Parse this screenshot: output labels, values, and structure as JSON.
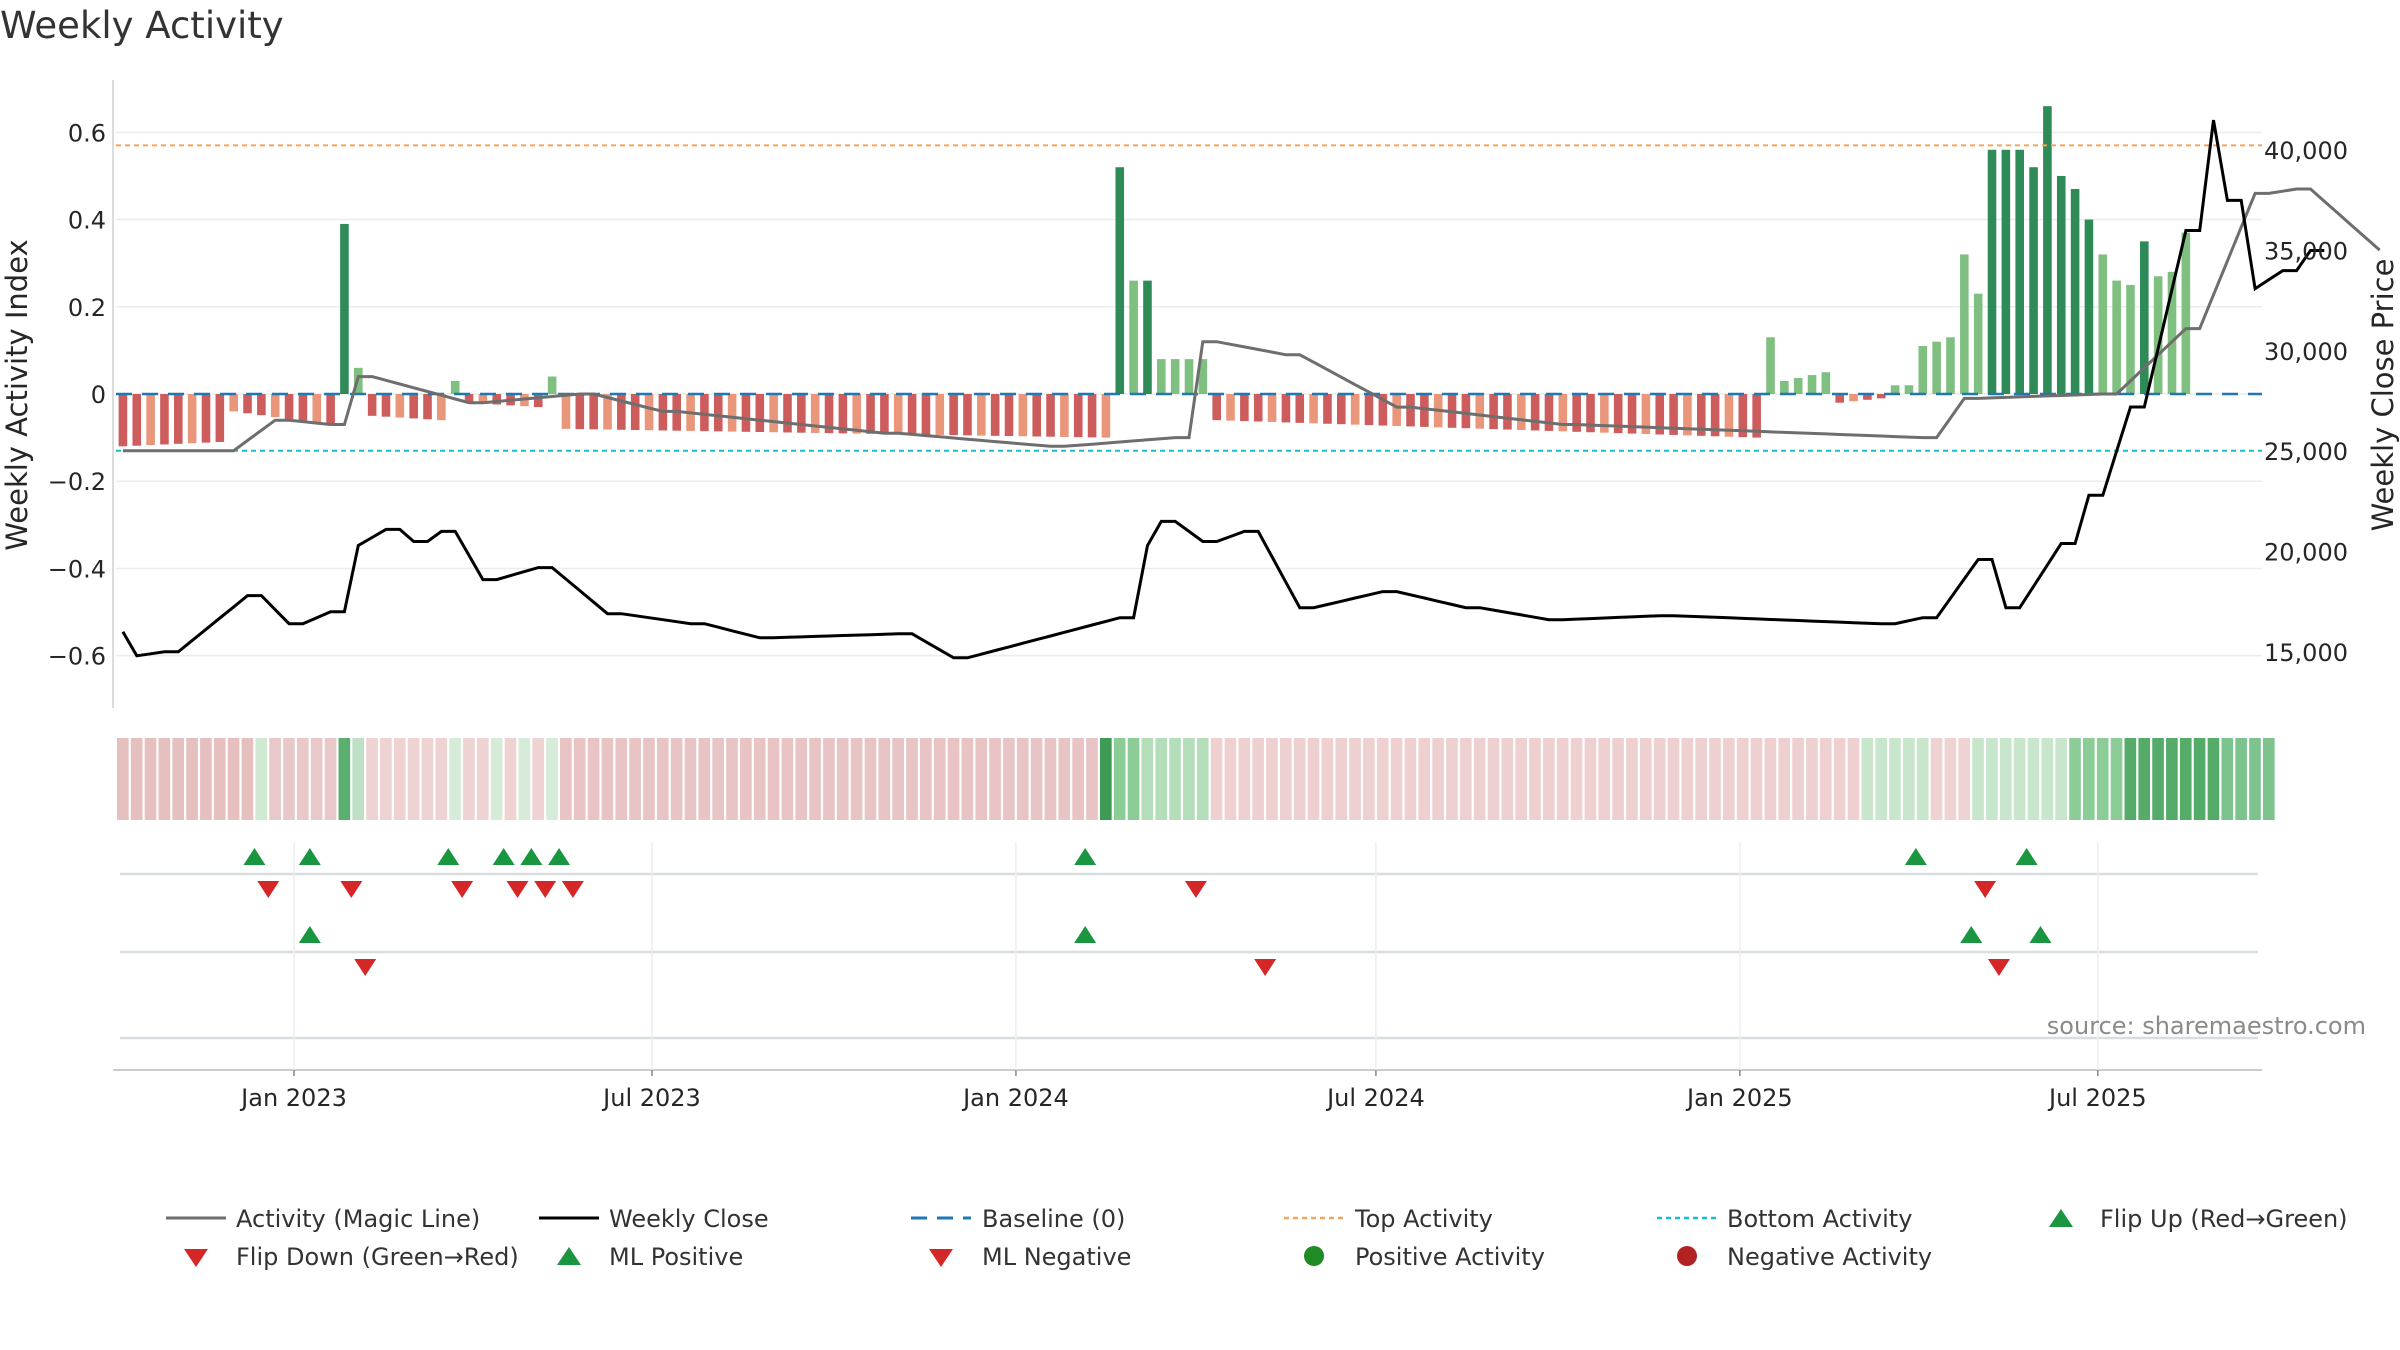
{
  "title": "Weekly Activity",
  "source": "source: sharemaestro.com",
  "colors": {
    "pos_strong": "#2e8b57",
    "pos_light": "#7fbf7f",
    "neg_strong": "#cd5c5c",
    "neg_light": "#e9967a",
    "magic_line": "#6e6e6e",
    "close_line": "#000000",
    "baseline": "#1f77b4",
    "top": "#f4a460",
    "bottom": "#17becf",
    "marker_up": "#1a9641",
    "marker_down": "#d62728",
    "pos_dot": "#1f8b24",
    "neg_dot": "#b22222"
  },
  "chart_data": {
    "type": "bar",
    "title": "Weekly Activity",
    "ylabel": "Weekly Activity Index",
    "y2label": "Weekly Close Price",
    "ylim": [
      -0.72,
      0.72
    ],
    "y2lim": [
      12200,
      43500
    ],
    "yticks": [
      {
        "v": 0.6,
        "label": "0.6"
      },
      {
        "v": 0.4,
        "label": "0.4"
      },
      {
        "v": 0.2,
        "label": "0.2"
      },
      {
        "v": 0,
        "label": "0"
      },
      {
        "v": -0.2,
        "label": "−0.2"
      },
      {
        "v": -0.4,
        "label": "−0.4"
      },
      {
        "v": -0.6,
        "label": "−0.6"
      }
    ],
    "y2ticks": [
      {
        "v": 40000,
        "label": "40,000"
      },
      {
        "v": 35000,
        "label": "35,000"
      },
      {
        "v": 30000,
        "label": "30,000"
      },
      {
        "v": 25000,
        "label": "25,000"
      },
      {
        "v": 20000,
        "label": "20,000"
      },
      {
        "v": 15000,
        "label": "15,000"
      }
    ],
    "xrange": [
      "2022-10-03",
      "2025-09-22"
    ],
    "xticks": [
      {
        "date": "2023-01-01",
        "label": "Jan 2023"
      },
      {
        "date": "2023-07-01",
        "label": "Jul 2023"
      },
      {
        "date": "2024-01-01",
        "label": "Jan 2024"
      },
      {
        "date": "2024-07-01",
        "label": "Jul 2024"
      },
      {
        "date": "2025-01-01",
        "label": "Jan 2025"
      },
      {
        "date": "2025-07-01",
        "label": "Jul 2025"
      }
    ],
    "top_activity": 0.57,
    "bottom_activity": -0.13,
    "baseline": 0,
    "series": [
      {
        "name": "Activity (Magic Line)",
        "kind": "line",
        "segments": [
          {
            "weeks": 8,
            "from": -0.13,
            "to": -0.13
          },
          {
            "weeks": 4,
            "from": -0.13,
            "to": -0.06
          },
          {
            "weeks": 4,
            "from": -0.06,
            "to": -0.07
          },
          {
            "weeks": 2,
            "from": -0.07,
            "to": 0.04
          },
          {
            "weeks": 8,
            "from": 0.04,
            "to": -0.02
          },
          {
            "weeks": 8,
            "from": -0.02,
            "to": 0.0
          },
          {
            "weeks": 6,
            "from": 0.0,
            "to": -0.04
          },
          {
            "weeks": 16,
            "from": -0.04,
            "to": -0.09
          },
          {
            "weeks": 12,
            "from": -0.09,
            "to": -0.12
          },
          {
            "weeks": 9,
            "from": -0.12,
            "to": -0.1
          },
          {
            "weeks": 2,
            "from": -0.1,
            "to": 0.12
          },
          {
            "weeks": 6,
            "from": 0.12,
            "to": 0.09
          },
          {
            "weeks": 8,
            "from": 0.09,
            "to": -0.03
          },
          {
            "weeks": 12,
            "from": -0.03,
            "to": -0.07
          },
          {
            "weeks": 26,
            "from": -0.07,
            "to": -0.1
          },
          {
            "weeks": 3,
            "from": -0.1,
            "to": -0.01
          },
          {
            "weeks": 10,
            "from": -0.01,
            "to": 0.0
          },
          {
            "weeks": 6,
            "from": 0.0,
            "to": 0.15
          },
          {
            "weeks": 5,
            "from": 0.15,
            "to": 0.46
          },
          {
            "weeks": 3,
            "from": 0.46,
            "to": 0.47
          },
          {
            "weeks": 6,
            "from": 0.47,
            "to": 0.33
          }
        ]
      },
      {
        "name": "Weekly Close",
        "kind": "line",
        "axis": "right",
        "segments": [
          {
            "weeks": 1,
            "from": 16000,
            "to": 14800
          },
          {
            "weeks": 3,
            "from": 14800,
            "to": 15000
          },
          {
            "weeks": 6,
            "from": 15000,
            "to": 17800
          },
          {
            "weeks": 3,
            "from": 17800,
            "to": 16400
          },
          {
            "weeks": 3,
            "from": 16400,
            "to": 17000
          },
          {
            "weeks": 1,
            "from": 17000,
            "to": 20300
          },
          {
            "weeks": 3,
            "from": 20300,
            "to": 21100
          },
          {
            "weeks": 2,
            "from": 21100,
            "to": 20500
          },
          {
            "weeks": 2,
            "from": 20500,
            "to": 21000
          },
          {
            "weeks": 3,
            "from": 21000,
            "to": 18600
          },
          {
            "weeks": 4,
            "from": 18600,
            "to": 19200
          },
          {
            "weeks": 5,
            "from": 19200,
            "to": 16900
          },
          {
            "weeks": 6,
            "from": 16900,
            "to": 16400
          },
          {
            "weeks": 5,
            "from": 16400,
            "to": 15700
          },
          {
            "weeks": 10,
            "from": 15700,
            "to": 15900
          },
          {
            "weeks": 4,
            "from": 15900,
            "to": 14700
          },
          {
            "weeks": 12,
            "from": 14700,
            "to": 16700
          },
          {
            "weeks": 1,
            "from": 16700,
            "to": 20300
          },
          {
            "weeks": 2,
            "from": 20300,
            "to": 21500
          },
          {
            "weeks": 3,
            "from": 21500,
            "to": 20500
          },
          {
            "weeks": 3,
            "from": 20500,
            "to": 21000
          },
          {
            "weeks": 4,
            "from": 21000,
            "to": 17200
          },
          {
            "weeks": 6,
            "from": 17200,
            "to": 18000
          },
          {
            "weeks": 6,
            "from": 18000,
            "to": 17200
          },
          {
            "weeks": 6,
            "from": 17200,
            "to": 16600
          },
          {
            "weeks": 8,
            "from": 16600,
            "to": 16800
          },
          {
            "weeks": 16,
            "from": 16800,
            "to": 16400
          },
          {
            "weeks": 3,
            "from": 16400,
            "to": 16700
          },
          {
            "weeks": 4,
            "from": 16700,
            "to": 19600
          },
          {
            "weeks": 2,
            "from": 19600,
            "to": 17200
          },
          {
            "weeks": 4,
            "from": 17200,
            "to": 20400
          },
          {
            "weeks": 2,
            "from": 20400,
            "to": 22800
          },
          {
            "weeks": 3,
            "from": 22800,
            "to": 27200
          },
          {
            "weeks": 4,
            "from": 27200,
            "to": 36000
          },
          {
            "weeks": 1,
            "from": 36000,
            "to": 41500
          },
          {
            "weeks": 2,
            "from": 41500,
            "to": 37500
          },
          {
            "weeks": 1,
            "from": 37500,
            "to": 33100
          },
          {
            "weeks": 3,
            "from": 33100,
            "to": 34000
          },
          {
            "weeks": 2,
            "from": 34000,
            "to": 35000
          },
          {
            "weeks": 1,
            "from": 35000,
            "to": 38200
          }
        ]
      }
    ],
    "activity_bars": [
      {
        "weeks": 8,
        "from": -0.12,
        "to": -0.11
      },
      {
        "weeks": 8,
        "from": -0.04,
        "to": -0.07
      },
      {
        "weeks": 1,
        "from": 0.39,
        "to": 0.39
      },
      {
        "weeks": 1,
        "from": 0.06,
        "to": 0.06
      },
      {
        "weeks": 6,
        "from": -0.05,
        "to": -0.06
      },
      {
        "weeks": 1,
        "from": 0.03,
        "to": 0.03
      },
      {
        "weeks": 6,
        "from": -0.02,
        "to": -0.03
      },
      {
        "weeks": 1,
        "from": 0.04,
        "to": 0.04
      },
      {
        "weeks": 40,
        "from": -0.08,
        "to": -0.1
      },
      {
        "weeks": 1,
        "from": 0.52,
        "to": 0.52
      },
      {
        "weeks": 2,
        "from": 0.26,
        "to": 0.26
      },
      {
        "weeks": 4,
        "from": 0.08,
        "to": 0.08
      },
      {
        "weeks": 40,
        "from": -0.06,
        "to": -0.1
      },
      {
        "weeks": 1,
        "from": 0.13,
        "to": 0.13
      },
      {
        "weeks": 4,
        "from": 0.03,
        "to": 0.05
      },
      {
        "weeks": 4,
        "from": -0.02,
        "to": -0.01
      },
      {
        "weeks": 2,
        "from": 0.02,
        "to": 0.02
      },
      {
        "weeks": 3,
        "from": 0.11,
        "to": 0.13
      },
      {
        "weeks": 1,
        "from": 0.32,
        "to": 0.32
      },
      {
        "weeks": 1,
        "from": 0.23,
        "to": 0.23
      },
      {
        "weeks": 3,
        "from": 0.56,
        "to": 0.56
      },
      {
        "weeks": 1,
        "from": 0.52,
        "to": 0.52
      },
      {
        "weeks": 1,
        "from": 0.66,
        "to": 0.66
      },
      {
        "weeks": 2,
        "from": 0.5,
        "to": 0.47
      },
      {
        "weeks": 1,
        "from": 0.4,
        "to": 0.4
      },
      {
        "weeks": 1,
        "from": 0.32,
        "to": 0.32
      },
      {
        "weeks": 1,
        "from": 0.26,
        "to": 0.26
      },
      {
        "weeks": 1,
        "from": 0.25,
        "to": 0.25
      },
      {
        "weeks": 1,
        "from": 0.35,
        "to": 0.35
      },
      {
        "weeks": 2,
        "from": 0.27,
        "to": 0.28
      },
      {
        "weeks": 1,
        "from": 0.37,
        "to": 0.37
      }
    ],
    "strip": [
      {
        "weeks": 10,
        "color": "#e6bfbf"
      },
      {
        "weeks": 1,
        "color": "#cfe9d3"
      },
      {
        "weeks": 5,
        "color": "#e8c8c8"
      },
      {
        "weeks": 1,
        "color": "#5aae6e"
      },
      {
        "weeks": 1,
        "color": "#bfe0c4"
      },
      {
        "weeks": 6,
        "color": "#efd2d2"
      },
      {
        "weeks": 1,
        "color": "#d6ecd9"
      },
      {
        "weeks": 2,
        "color": "#efd2d2"
      },
      {
        "weeks": 1,
        "color": "#d6ecd9"
      },
      {
        "weeks": 1,
        "color": "#efd2d2"
      },
      {
        "weeks": 1,
        "color": "#d6ecd9"
      },
      {
        "weeks": 1,
        "color": "#efd2d2"
      },
      {
        "weeks": 1,
        "color": "#d6ecd9"
      },
      {
        "weeks": 39,
        "color": "#e8c4c4"
      },
      {
        "weeks": 1,
        "color": "#3f9a55"
      },
      {
        "weeks": 2,
        "color": "#8ccc96"
      },
      {
        "weeks": 5,
        "color": "#b4deba"
      },
      {
        "weeks": 47,
        "color": "#efd0d0"
      },
      {
        "weeks": 5,
        "color": "#c8e6cc"
      },
      {
        "weeks": 3,
        "color": "#efd2d2"
      },
      {
        "weeks": 7,
        "color": "#c8e6cc"
      },
      {
        "weeks": 4,
        "color": "#8ccc96"
      },
      {
        "weeks": 7,
        "color": "#55ac69"
      },
      {
        "weeks": 4,
        "color": "#7dc38d"
      }
    ],
    "events": {
      "flip_up": [
        "2022-12-12",
        "2023-01-09",
        "2023-03-20",
        "2023-04-17",
        "2023-05-01",
        "2023-05-15",
        "2024-02-05",
        "2025-03-31",
        "2025-05-26"
      ],
      "flip_down": [
        "2022-12-19",
        "2023-01-30",
        "2023-03-27",
        "2023-04-24",
        "2023-05-08",
        "2023-05-22",
        "2024-04-01",
        "2025-05-05"
      ],
      "ml_positive": [
        "2023-01-09",
        "2024-02-05",
        "2025-04-28",
        "2025-06-02"
      ],
      "ml_negative": [
        "2023-02-06",
        "2024-05-06",
        "2025-05-12"
      ]
    }
  },
  "legend": {
    "magic_line": "Activity (Magic Line)",
    "weekly_close": "Weekly Close",
    "baseline": "Baseline (0)",
    "top_activity": "Top Activity",
    "bottom_activity": "Bottom Activity",
    "flip_up": "Flip Up (Red→Green)",
    "flip_down": "Flip Down (Green→Red)",
    "ml_positive": "ML Positive",
    "ml_negative": "ML Negative",
    "positive_activity": "Positive Activity",
    "negative_activity": "Negative Activity"
  }
}
